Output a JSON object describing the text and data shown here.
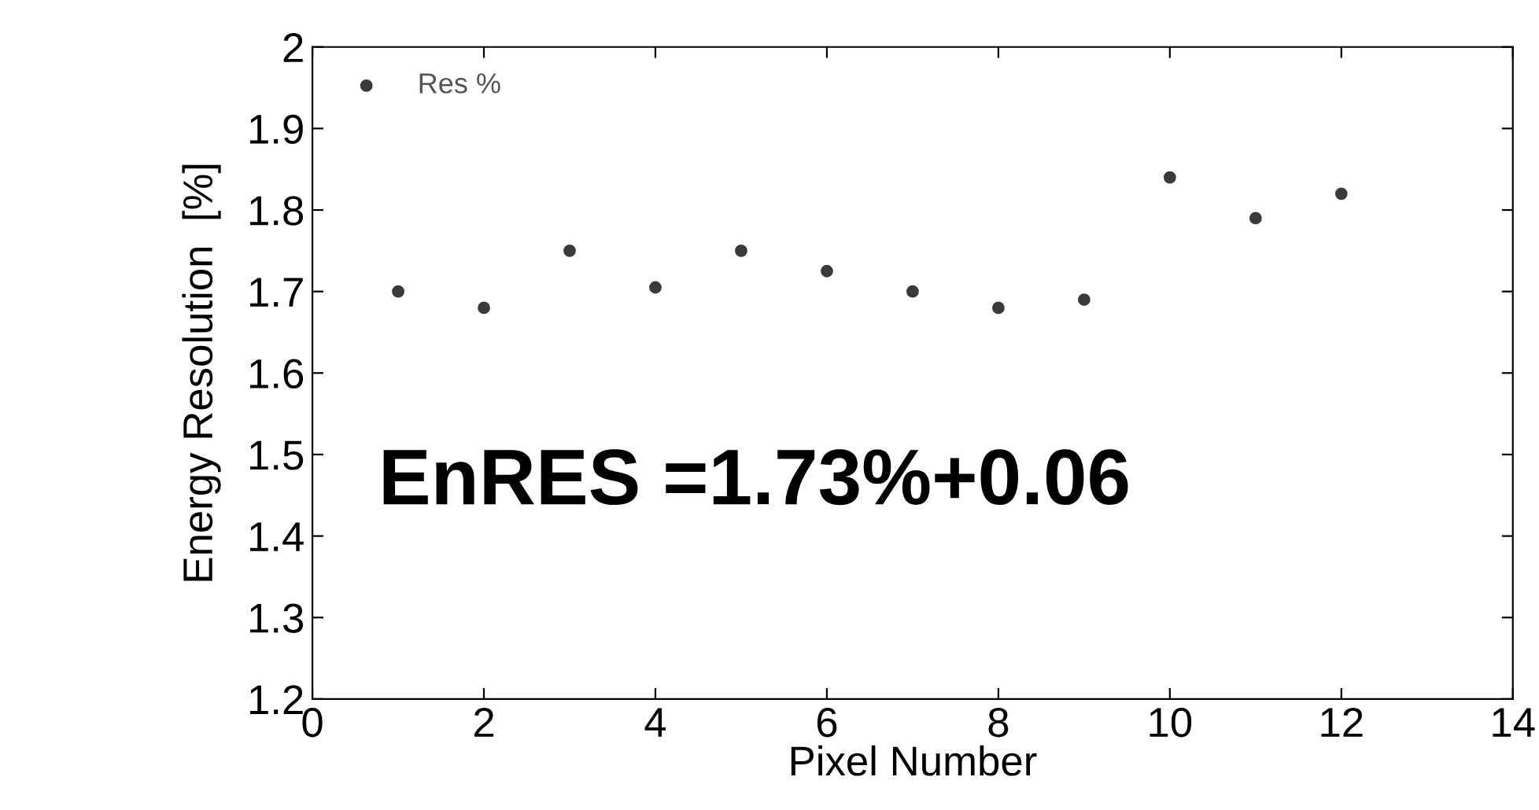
{
  "chart_data": {
    "type": "scatter",
    "xlabel": "Pixel Number",
    "ylabel": "Energy Resolution  [%]",
    "x": [
      1,
      2,
      3,
      4,
      5,
      6,
      7,
      8,
      9,
      10,
      11,
      12
    ],
    "series": [
      {
        "name": "Res %",
        "color": "#3a3a3a",
        "values": [
          1.7,
          1.68,
          1.75,
          1.705,
          1.75,
          1.725,
          1.7,
          1.68,
          1.69,
          1.84,
          1.79,
          1.82
        ]
      }
    ],
    "xlim": [
      0,
      14
    ],
    "xticks": [
      0,
      2,
      4,
      6,
      8,
      10,
      12,
      14
    ],
    "ylim": [
      1.2,
      2
    ],
    "yticks": [
      1.2,
      1.3,
      1.4,
      1.5,
      1.6,
      1.7,
      1.8,
      1.9,
      2
    ],
    "annotations": [
      "EnRES =1.73%+0.06"
    ],
    "legend": "top left",
    "marker": "circle",
    "grid": false
  }
}
